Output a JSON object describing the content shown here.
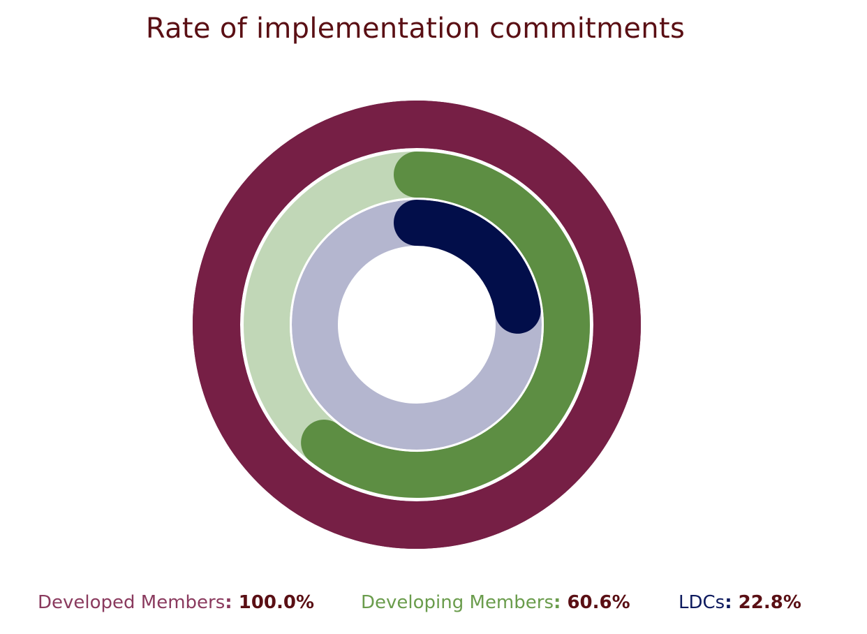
{
  "chart_data": {
    "type": "radial-bar",
    "title": "Rate of implementation commitments",
    "series": [
      {
        "name": "Developed Members",
        "value": 100.0,
        "value_label": "100.0%",
        "color": "#761f45",
        "track_color": "#761f45",
        "label_color": "#8a3a5e",
        "value_color": "#5a0f14"
      },
      {
        "name": "Developing Members",
        "value": 60.6,
        "value_label": "60.6%",
        "color": "#5d8e43",
        "track_color": "#c1d7b7",
        "label_color": "#6a9c4c",
        "value_color": "#5a0f14"
      },
      {
        "name": "LDCs",
        "value": 22.8,
        "value_label": "22.8%",
        "color": "#020e4a",
        "track_color": "#b4b6cf",
        "label_color": "#0d1a5e",
        "value_color": "#5a0f14"
      }
    ],
    "unit": "%",
    "legend_position": "bottom"
  }
}
